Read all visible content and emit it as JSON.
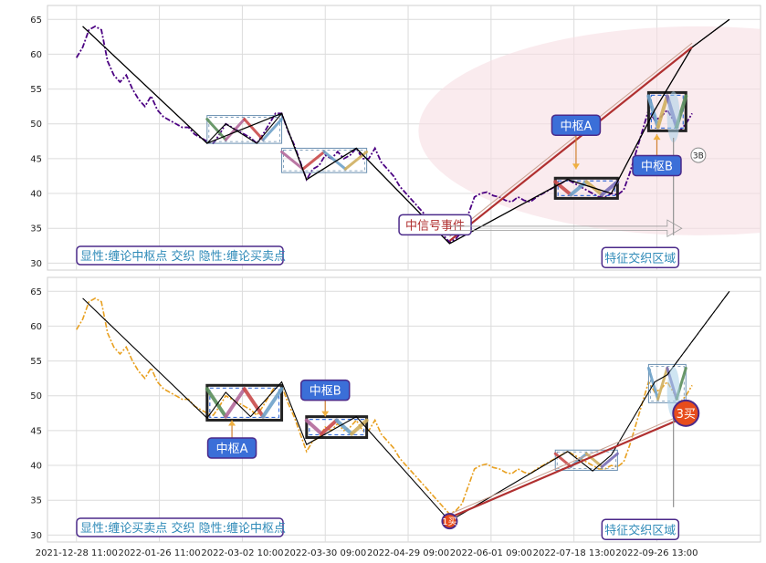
{
  "chart_data": [
    {
      "type": "line",
      "panel": "top",
      "y_ticks": [
        30,
        35,
        40,
        45,
        50,
        55,
        60,
        65
      ],
      "ylim": [
        29,
        67
      ],
      "grid": true,
      "price_color": "#4b0082",
      "price": [
        [
          0,
          59.5
        ],
        [
          3,
          61
        ],
        [
          6,
          63.5
        ],
        [
          9,
          64
        ],
        [
          12,
          63.5
        ],
        [
          15,
          59
        ],
        [
          18,
          57
        ],
        [
          21,
          56
        ],
        [
          24,
          57
        ],
        [
          27,
          55
        ],
        [
          30,
          53.5
        ],
        [
          33,
          52.5
        ],
        [
          36,
          54
        ],
        [
          39,
          52
        ],
        [
          42,
          51
        ],
        [
          45,
          50.5
        ],
        [
          48,
          50
        ],
        [
          51,
          49.5
        ],
        [
          54,
          49.5
        ],
        [
          57,
          48.5
        ],
        [
          60,
          48
        ],
        [
          63,
          47.5
        ],
        [
          66,
          47.2
        ],
        [
          69,
          48.5
        ],
        [
          72,
          50
        ],
        [
          75,
          49.5
        ],
        [
          78,
          49
        ],
        [
          81,
          48.5
        ],
        [
          84,
          48
        ],
        [
          87,
          47.2
        ],
        [
          90,
          48.5
        ],
        [
          93,
          50
        ],
        [
          96,
          51.5
        ],
        [
          99,
          51.5
        ],
        [
          102,
          49
        ],
        [
          105,
          47
        ],
        [
          108,
          44.5
        ],
        [
          111,
          42
        ],
        [
          114,
          43.5
        ],
        [
          117,
          44
        ],
        [
          120,
          45.5
        ],
        [
          123,
          45
        ],
        [
          126,
          46
        ],
        [
          129,
          45
        ],
        [
          132,
          45.5
        ],
        [
          135,
          46.5
        ],
        [
          138,
          45
        ],
        [
          141,
          45
        ],
        [
          144,
          46.5
        ],
        [
          147,
          44.5
        ],
        [
          150,
          43.5
        ],
        [
          153,
          42.5
        ],
        [
          156,
          41
        ],
        [
          159,
          40
        ],
        [
          162,
          39
        ],
        [
          165,
          38
        ],
        [
          168,
          37
        ],
        [
          171,
          36
        ],
        [
          174,
          35
        ],
        [
          177,
          34
        ],
        [
          180,
          33
        ],
        [
          183,
          33.5
        ],
        [
          186,
          34.5
        ],
        [
          189,
          37
        ],
        [
          192,
          39.5
        ],
        [
          195,
          40
        ],
        [
          198,
          40.2
        ],
        [
          201,
          39.7
        ],
        [
          204,
          39.5
        ],
        [
          207,
          39
        ],
        [
          210,
          38.8
        ],
        [
          213,
          39.5
        ],
        [
          216,
          39
        ],
        [
          219,
          38.8
        ],
        [
          222,
          39.5
        ],
        [
          225,
          40
        ],
        [
          228,
          40.5
        ],
        [
          231,
          41
        ],
        [
          234,
          41.5
        ],
        [
          237,
          42
        ],
        [
          240,
          41.5
        ],
        [
          243,
          41
        ],
        [
          246,
          40.5
        ],
        [
          249,
          40
        ],
        [
          252,
          39.5
        ],
        [
          255,
          39.5
        ],
        [
          258,
          40
        ],
        [
          261,
          39.8
        ],
        [
          264,
          40.5
        ],
        [
          267,
          43
        ],
        [
          270,
          46
        ],
        [
          273,
          49
        ],
        [
          276,
          52
        ],
        [
          279,
          50.5
        ],
        [
          282,
          51
        ],
        [
          285,
          52
        ],
        [
          288,
          50.5
        ],
        [
          291,
          49
        ],
        [
          294,
          50
        ],
        [
          297,
          51.5
        ]
      ],
      "bi": [
        [
          3,
          64
        ],
        [
          63,
          47.2
        ],
        [
          72,
          50
        ],
        [
          87,
          47.2
        ],
        [
          99,
          51.5
        ],
        [
          111,
          42
        ],
        [
          135,
          46.5
        ],
        [
          180,
          32.8
        ],
        [
          237,
          42
        ],
        [
          258,
          40
        ],
        [
          279,
          52
        ],
        [
          297,
          61
        ],
        [
          315,
          65
        ]
      ],
      "seg": [
        [
          3,
          64
        ],
        [
          63,
          47.2
        ],
        [
          99,
          51.5
        ],
        [
          111,
          42
        ],
        [
          135,
          46.5
        ],
        [
          180,
          32.8
        ],
        [
          237,
          42
        ],
        [
          258,
          40
        ],
        [
          279,
          52
        ],
        [
          297,
          61
        ],
        [
          315,
          65
        ]
      ],
      "zs": [
        {
          "x0": 63,
          "x1": 99,
          "low": 47.2,
          "high": 51.2,
          "style": "thin"
        },
        {
          "x0": 99,
          "x1": 140,
          "low": 43,
          "high": 46.5,
          "style": "thin"
        },
        {
          "x0": 231,
          "x1": 261,
          "low": 39.3,
          "high": 42.2,
          "style": "bold"
        },
        {
          "x0": 276,
          "x1": 294,
          "low": 49,
          "high": 54.5,
          "style": "bold"
        }
      ],
      "ellipse": {
        "cx": 300,
        "cy": 49,
        "rx": 135,
        "ry": 15
      },
      "bsp_label": "3B",
      "annotations": [
        {
          "text": "中枢A",
          "x": 241,
          "y": 49.8,
          "tail_y": 43.5,
          "color": "#3b6fd8",
          "fg": "#ffffff"
        },
        {
          "text": "中枢B",
          "x": 280,
          "y": 44,
          "tail_y": 48.5,
          "color": "#3b6fd8",
          "fg": "#ffffff"
        },
        {
          "text": "中信号事件",
          "x": 173,
          "y": 35.5,
          "tail_y": null,
          "color": "#ffffff",
          "fg": "#b03030"
        }
      ],
      "region_label": "特征交织区域",
      "legend_label": "显性:缠论中枢点 交织 隐性:缠论买卖点"
    },
    {
      "type": "line",
      "panel": "bottom",
      "y_ticks": [
        30,
        35,
        40,
        45,
        50,
        55,
        60,
        65
      ],
      "ylim": [
        29,
        67
      ],
      "grid": true,
      "price_color": "#e8a020",
      "bi": [
        [
          3,
          64
        ],
        [
          63,
          46.8
        ],
        [
          72,
          50.5
        ],
        [
          84,
          47
        ],
        [
          99,
          52
        ],
        [
          111,
          43
        ],
        [
          135,
          47
        ],
        [
          180,
          32
        ],
        [
          237,
          42
        ],
        [
          249,
          39.2
        ],
        [
          258,
          41.5
        ],
        [
          279,
          52
        ],
        [
          285,
          53
        ],
        [
          315,
          65
        ]
      ],
      "zs": [
        {
          "x0": 63,
          "x1": 99,
          "low": 46.5,
          "high": 51.5,
          "style": "bold"
        },
        {
          "x0": 111,
          "x1": 140,
          "low": 44,
          "high": 47,
          "style": "bold"
        },
        {
          "x0": 231,
          "x1": 261,
          "low": 39.3,
          "high": 42.2,
          "style": "thin"
        },
        {
          "x0": 276,
          "x1": 294,
          "low": 49,
          "high": 54.5,
          "style": "thin"
        }
      ],
      "bsp": [
        {
          "label": "1买",
          "x": 180,
          "y": 32,
          "r": 8
        },
        {
          "label": "3买",
          "x": 294,
          "y": 47.5,
          "r": 14
        }
      ],
      "annotations": [
        {
          "text": "中枢A",
          "x": 75,
          "y": 42.5,
          "tail_y": 46.5,
          "color": "#3b6fd8",
          "fg": "#ffffff"
        },
        {
          "text": "中枢B",
          "x": 120,
          "y": 50.8,
          "tail_y": 47,
          "color": "#3b6fd8",
          "fg": "#ffffff"
        }
      ],
      "region_label": "特征交织区域",
      "legend_label": "显性:缠论买卖点 交织 隐性:缠论中枢点"
    }
  ],
  "x_ticks": [
    {
      "label": "2021-12-28 11:00",
      "x": 0
    },
    {
      "label": "2022-01-26 11:00",
      "x": 40
    },
    {
      "label": "2022-03-02 10:00",
      "x": 80
    },
    {
      "label": "2022-03-30 09:00",
      "x": 120
    },
    {
      "label": "2022-04-29 09:00",
      "x": 160
    },
    {
      "label": "2022-06-01 09:00",
      "x": 200
    },
    {
      "label": "2022-07-18 13:00",
      "x": 240
    },
    {
      "label": "2022-09-26 13:00",
      "x": 280
    }
  ],
  "xlim": [
    -14,
    330
  ]
}
